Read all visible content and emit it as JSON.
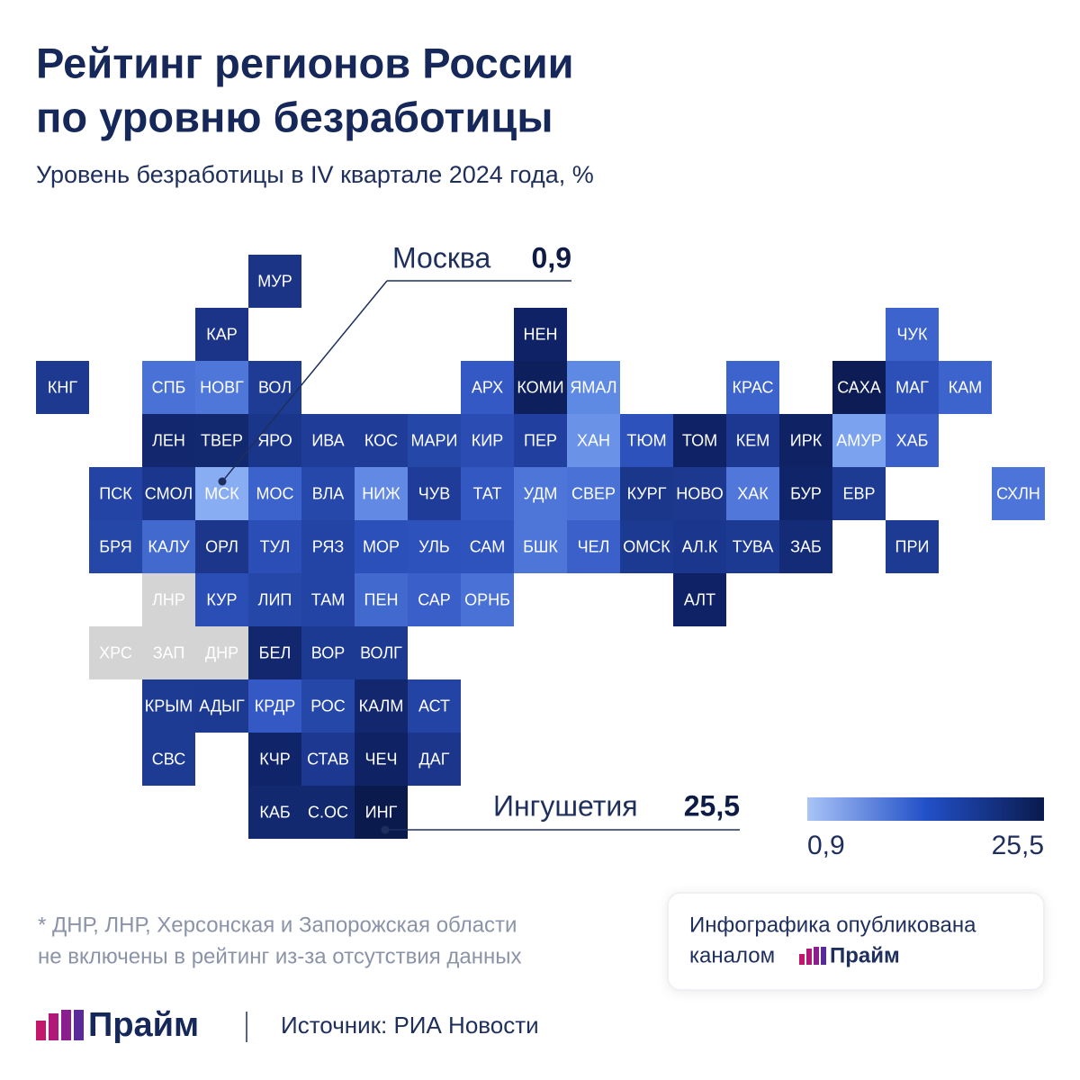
{
  "header": {
    "title_lines": [
      "Рейтинг регионов России",
      "по уровню безработицы"
    ],
    "subtitle": "Уровень безработицы в IV квартале 2024 года, %"
  },
  "tiles": [
    {
      "label": "МУР",
      "color": "#1c3486"
    },
    {
      "label": "КАР",
      "color": "#1b3488"
    },
    {
      "label": "НЕН",
      "color": "#0f2266"
    },
    {
      "label": "ЧУК",
      "color": "#3d63cc"
    },
    {
      "label": "КНГ",
      "color": "#1d3a90"
    },
    {
      "label": "СПБ",
      "color": "#4a72d6"
    },
    {
      "label": "НОВГ",
      "color": "#4f77da"
    },
    {
      "label": "ВОЛ",
      "color": "#1f3c94"
    },
    {
      "label": "АРХ",
      "color": "#3459c4"
    },
    {
      "label": "КОМИ",
      "color": "#0e1f5e"
    },
    {
      "label": "ЯМАЛ",
      "color": "#5f8ae4"
    },
    {
      "label": "КРАС",
      "color": "#3d63cc"
    },
    {
      "label": "САХА",
      "color": "#0d1c55"
    },
    {
      "label": "МАГ",
      "color": "#2c4fb8"
    },
    {
      "label": "КАМ",
      "color": "#3d63cc"
    },
    {
      "label": "ЛЕН",
      "color": "#12276e"
    },
    {
      "label": "ТВЕР",
      "color": "#13296f"
    },
    {
      "label": "ЯРО",
      "color": "#1a368a"
    },
    {
      "label": "ИВА",
      "color": "#1f3d98"
    },
    {
      "label": "КОС",
      "color": "#1f3d98"
    },
    {
      "label": "МАРИ",
      "color": "#2547a8"
    },
    {
      "label": "КИР",
      "color": "#2a4cb3"
    },
    {
      "label": "ПЕР",
      "color": "#203f9e"
    },
    {
      "label": "ХАН",
      "color": "#6a93e8"
    },
    {
      "label": "ТЮМ",
      "color": "#2d52bc"
    },
    {
      "label": "ТОМ",
      "color": "#0f2265"
    },
    {
      "label": "КЕМ",
      "color": "#1c3890"
    },
    {
      "label": "ИРК",
      "color": "#0f2264"
    },
    {
      "label": "АМУР",
      "color": "#7aa2ee"
    },
    {
      "label": "ХАБ",
      "color": "#3a5fc8"
    },
    {
      "label": "ПСК",
      "color": "#2344a4"
    },
    {
      "label": "СМОЛ",
      "color": "#1b378d"
    },
    {
      "label": "МСК",
      "color": "#89adf3"
    },
    {
      "label": "МОС",
      "color": "#3c62cb"
    },
    {
      "label": "ВЛА",
      "color": "#2648ab"
    },
    {
      "label": "НИЖ",
      "color": "#6289e3"
    },
    {
      "label": "ЧУВ",
      "color": "#1f3d98"
    },
    {
      "label": "ТАТ",
      "color": "#3458c2"
    },
    {
      "label": "УДМ",
      "color": "#4e76d8"
    },
    {
      "label": "СВЕР",
      "color": "#4a72d6"
    },
    {
      "label": "КУРГ",
      "color": "#1b378c"
    },
    {
      "label": "НОВО",
      "color": "#1c388f"
    },
    {
      "label": "ХАК",
      "color": "#5177da"
    },
    {
      "label": "БУР",
      "color": "#10246a"
    },
    {
      "label": "ЕВР",
      "color": "#1e3b94"
    },
    {
      "label": "СХЛН",
      "color": "#4d74d8"
    },
    {
      "label": "БРЯ",
      "color": "#2547a8"
    },
    {
      "label": "КАЛУ",
      "color": "#4169ce"
    },
    {
      "label": "ОРЛ",
      "color": "#1b368b"
    },
    {
      "label": "ТУЛ",
      "color": "#2b4eb6"
    },
    {
      "label": "РЯЗ",
      "color": "#2344a4"
    },
    {
      "label": "МОР",
      "color": "#2c50b9"
    },
    {
      "label": "УЛЬ",
      "color": "#2e52bc"
    },
    {
      "label": "САМ",
      "color": "#2f53bd"
    },
    {
      "label": "БШК",
      "color": "#4e76d8"
    },
    {
      "label": "ЧЕЛ",
      "color": "#3b60ca"
    },
    {
      "label": "ОМСК",
      "color": "#1d3a92"
    },
    {
      "label": "АЛ.К",
      "color": "#1b378d"
    },
    {
      "label": "ТУВА",
      "color": "#1d3a92"
    },
    {
      "label": "ЗАБ",
      "color": "#142b78"
    },
    {
      "label": "ПРИ",
      "color": "#1e3b94"
    },
    {
      "label": "ЛНР",
      "color": "#d4d4d4"
    },
    {
      "label": "КУР",
      "color": "#2b4eb6"
    },
    {
      "label": "ЛИП",
      "color": "#2547a8"
    },
    {
      "label": "ТАМ",
      "color": "#2344a4"
    },
    {
      "label": "ПЕН",
      "color": "#4169ce"
    },
    {
      "label": "САР",
      "color": "#3a5fc8"
    },
    {
      "label": "ОРНБ",
      "color": "#4a72d6"
    },
    {
      "label": "АЛТ",
      "color": "#0f2265"
    },
    {
      "label": "ХРС",
      "color": "#d4d4d4"
    },
    {
      "label": "ЗАП",
      "color": "#d4d4d4"
    },
    {
      "label": "ДНР",
      "color": "#d4d4d4"
    },
    {
      "label": "БЕЛ",
      "color": "#12276e"
    },
    {
      "label": "ВОР",
      "color": "#1d3a92"
    },
    {
      "label": "ВОЛГ",
      "color": "#1d3a92"
    },
    {
      "label": "КРЫМ",
      "color": "#1e3b94"
    },
    {
      "label": "АДЫГ",
      "color": "#1d3a92"
    },
    {
      "label": "КРДР",
      "color": "#3459c4"
    },
    {
      "label": "РОС",
      "color": "#2547a8"
    },
    {
      "label": "КАЛМ",
      "color": "#12276e"
    },
    {
      "label": "АСТ",
      "color": "#2344a4"
    },
    {
      "label": "СВС",
      "color": "#1e3b94"
    },
    {
      "label": "КЧР",
      "color": "#10246a"
    },
    {
      "label": "СТАВ",
      "color": "#1c3890"
    },
    {
      "label": "ЧЕЧ",
      "color": "#0f2264"
    },
    {
      "label": "ДАГ",
      "color": "#1b368b"
    },
    {
      "label": "КАБ",
      "color": "#12286f"
    },
    {
      "label": "С.ОС",
      "color": "#13296f"
    },
    {
      "label": "ИНГ",
      "color": "#0a1a4d"
    }
  ],
  "callouts": [
    {
      "name": "Москва",
      "value": 0.9,
      "value_label": "0,9"
    },
    {
      "name": "Ингушетия",
      "value": 25.5,
      "value_label": "25,5"
    }
  ],
  "legend": {
    "min": 0.9,
    "min_label": "0,9",
    "max": 25.5,
    "max_label": "25,5",
    "colors": [
      "#a9c4f7",
      "#2250c8",
      "#0a1a4d"
    ]
  },
  "footnote_lines": [
    "* ДНР, ЛНР, Херсонская и Запорожская области",
    "не включены в рейтинг из-за отсутствия данных"
  ],
  "info_box": {
    "line1": "Инфографика опубликована",
    "line2": "каналом",
    "brand": "Прайм"
  },
  "footer": {
    "brand": "Прайм",
    "source": "Источник: РИА Новости"
  }
}
